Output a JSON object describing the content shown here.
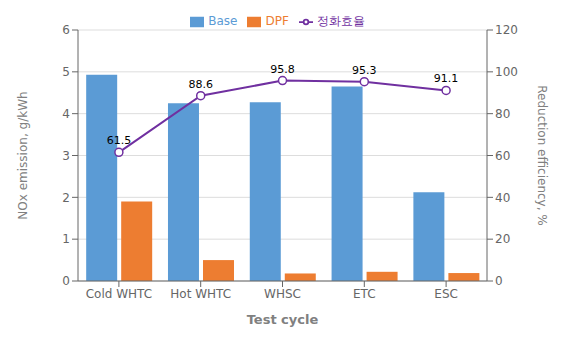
{
  "chart_data": {
    "type": "bar",
    "categories": [
      "Cold WHTC",
      "Hot WHTC",
      "WHSC",
      "ETC",
      "ESC"
    ],
    "xlabel": "Test cycle",
    "ylabel": "NOx emission, g/kWh",
    "y2label": "Reduction efficiency, %",
    "series": [
      {
        "name": "Base",
        "color": "#5B9BD5",
        "values": [
          4.93,
          4.25,
          4.27,
          4.65,
          2.12
        ]
      },
      {
        "name": "DPF",
        "color": "#ED7D31",
        "values": [
          1.9,
          0.5,
          0.18,
          0.22,
          0.19
        ]
      },
      {
        "name": "정화효율",
        "type": "line",
        "axis": "y2",
        "color": "#7030A0",
        "marker": "circle",
        "data_labels": true,
        "values": [
          61.5,
          88.6,
          95.8,
          95.3,
          91.1
        ]
      }
    ],
    "ylim": [
      0,
      6.0
    ],
    "yticks": [
      0.0,
      1.0,
      2.0,
      3.0,
      4.0,
      5.0,
      6.0
    ],
    "y2lim": [
      0,
      120
    ],
    "y2ticks": [
      0,
      20,
      40,
      60,
      80,
      100,
      120
    ],
    "grid": true,
    "legend": "top"
  }
}
